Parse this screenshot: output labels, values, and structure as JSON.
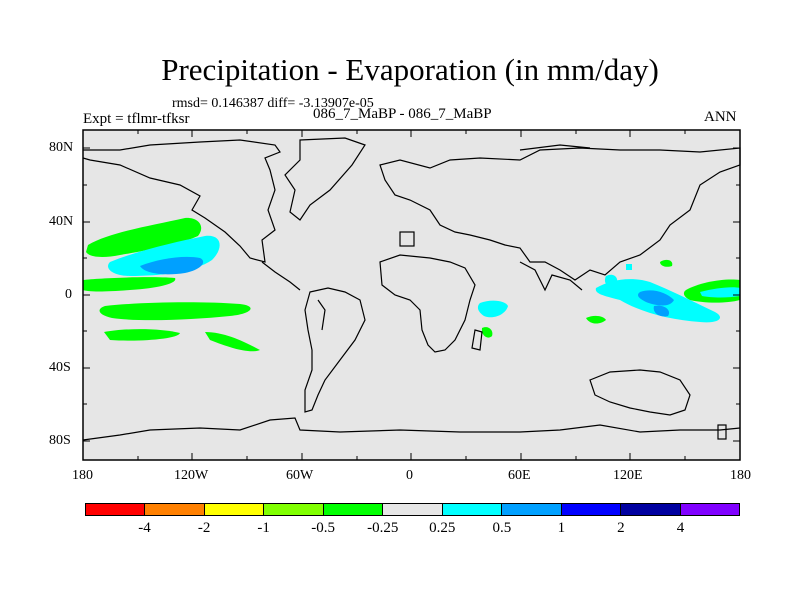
{
  "title": "Precipitation - Evaporation (in mm/day)",
  "stats": "rmsd= 0.146387 diff= -3.13907e-05",
  "expt": "Expt = tflmr-tfksr",
  "case": "086_7_MaBP - 086_7_MaBP",
  "season": "ANN",
  "y_axis_labels": [
    "80N",
    "40N",
    "0",
    "40S",
    "80S"
  ],
  "x_axis_labels": [
    "180",
    "120W",
    "60W",
    "0",
    "60E",
    "120E",
    "180"
  ],
  "colorbar": {
    "colors": [
      "#ff0000",
      "#ff8000",
      "#ffff00",
      "#80ff00",
      "#00ff00",
      "#e6e6e6",
      "#00ffff",
      "#00a0ff",
      "#0000ff",
      "#0000a0",
      "#8000ff"
    ],
    "labels": [
      "-4",
      "-2",
      "-1",
      "-0.5",
      "-0.25",
      "0.25",
      "0.5",
      "1",
      "2",
      "4"
    ]
  },
  "colors": {
    "background": "#e6e6e6",
    "cyan": "#00ffff",
    "light_blue": "#00a0ff",
    "green": "#00ff00",
    "coast": "#000000"
  }
}
